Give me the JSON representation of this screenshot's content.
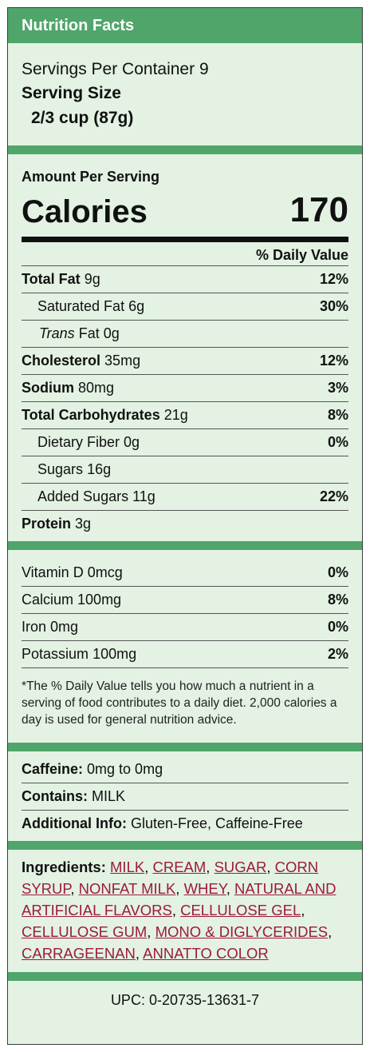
{
  "title": "Nutrition Facts",
  "servings": {
    "label": "Servings Per Container",
    "value": "9"
  },
  "serving_size": {
    "label": "Serving Size",
    "value": "2/3 cup (87g)"
  },
  "amount_per_serving": "Amount Per Serving",
  "calories": {
    "label": "Calories",
    "value": "170"
  },
  "daily_value_header": "% Daily Value",
  "nutrients": [
    {
      "name": "Total Fat",
      "amount": "9g",
      "dv": "12%"
    },
    {
      "name": "Saturated Fat",
      "amount": "6g",
      "dv": "30%"
    },
    {
      "name_prefix": "Trans",
      "name": "Fat",
      "amount": "0g",
      "dv": ""
    },
    {
      "name": "Cholesterol",
      "amount": "35mg",
      "dv": "12%"
    },
    {
      "name": "Sodium",
      "amount": "80mg",
      "dv": "3%"
    },
    {
      "name": "Total Carbohydrates",
      "amount": "21g",
      "dv": "8%"
    },
    {
      "name": "Dietary Fiber",
      "amount": "0g",
      "dv": "0%"
    },
    {
      "name": "Sugars",
      "amount": "16g",
      "dv": ""
    },
    {
      "name": "Added Sugars",
      "amount": "11g",
      "dv": "22%"
    },
    {
      "name": "Protein",
      "amount": "3g",
      "dv": ""
    }
  ],
  "vitamins": [
    {
      "name": "Vitamin D",
      "amount": "0mcg",
      "dv": "0%"
    },
    {
      "name": "Calcium",
      "amount": "100mg",
      "dv": "8%"
    },
    {
      "name": "Iron",
      "amount": "0mg",
      "dv": "0%"
    },
    {
      "name": "Potassium",
      "amount": "100mg",
      "dv": "2%"
    }
  ],
  "footnote": "*The % Daily Value tells you how much a nutrient in a serving of food contributes to a daily diet. 2,000 calories a day is used for general nutrition advice.",
  "info": {
    "caffeine_label": "Caffeine:",
    "caffeine_value": "0mg to 0mg",
    "contains_label": "Contains:",
    "contains_value": "MILK",
    "additional_label": "Additional Info:",
    "additional_value": "Gluten-Free, Caffeine-Free"
  },
  "ingredients_label": "Ingredients:",
  "ingredients": [
    "MILK",
    "CREAM",
    "SUGAR",
    "CORN SYRUP",
    "NONFAT MILK",
    "WHEY",
    "NATURAL AND ARTIFICIAL FLAVORS",
    "CELLULOSE GEL",
    "CELLULOSE GUM",
    "MONO & DIGLYCERIDES",
    "CARRAGEENAN",
    "ANNATTO COLOR"
  ],
  "upc": "UPC: 0-20735-13631-7",
  "colors": {
    "brand_green": "#50a56a",
    "panel_bg": "#e3f2e3",
    "link": "#9b1b3b"
  }
}
